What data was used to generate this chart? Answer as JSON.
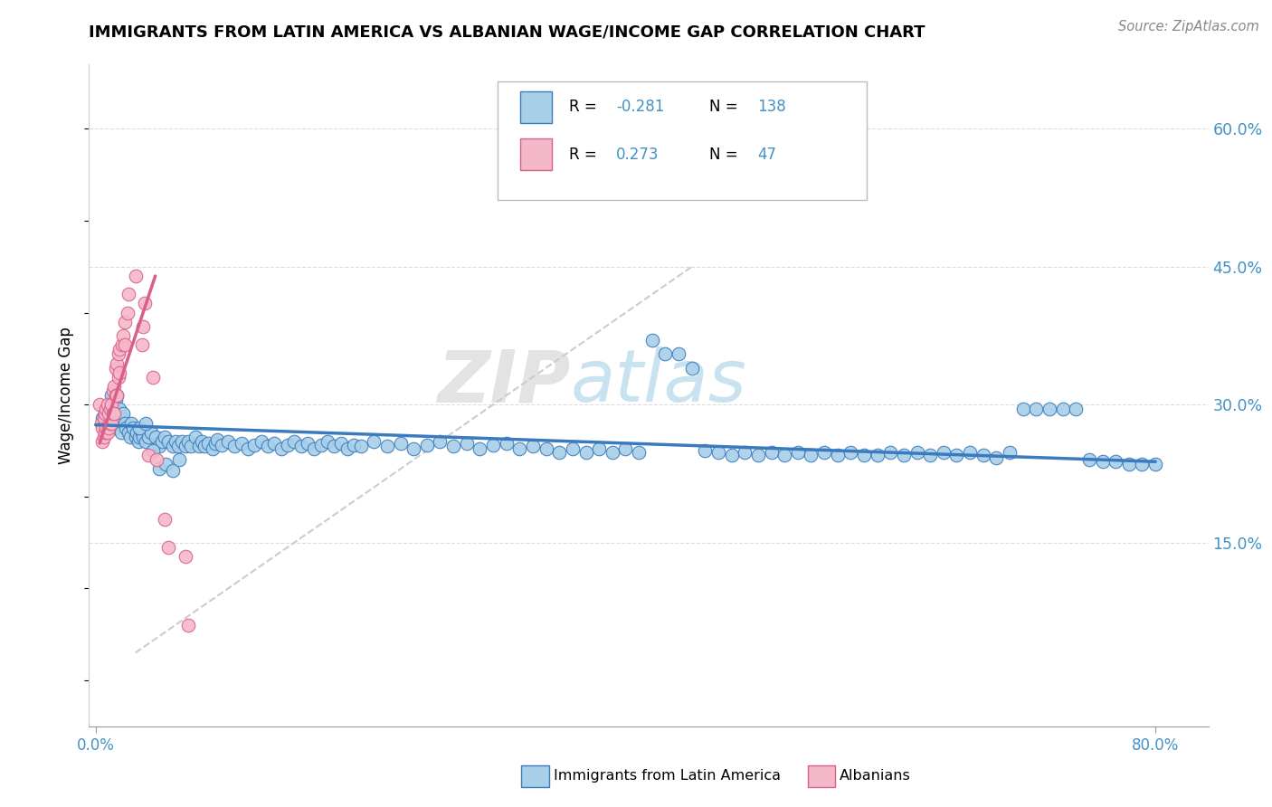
{
  "title": "IMMIGRANTS FROM LATIN AMERICA VS ALBANIAN WAGE/INCOME GAP CORRELATION CHART",
  "source": "Source: ZipAtlas.com",
  "ylabel": "Wage/Income Gap",
  "yticks": [
    0.0,
    0.15,
    0.3,
    0.45,
    0.6
  ],
  "ytick_labels": [
    "",
    "15.0%",
    "30.0%",
    "45.0%",
    "60.0%"
  ],
  "xlim": [
    -0.005,
    0.84
  ],
  "ylim": [
    -0.05,
    0.67
  ],
  "legend_r1_black": "R = ",
  "legend_r1_val": "-0.281",
  "legend_n1_label": "N = ",
  "legend_n1_val": "138",
  "legend_r2_black": "R =  ",
  "legend_r2_val": "0.273",
  "legend_n2_label": "N =  ",
  "legend_n2_val": "47",
  "color_blue": "#a8cfe8",
  "color_pink": "#f5b8c8",
  "color_blue_line": "#3a7bbf",
  "color_pink_line": "#d95f8a",
  "color_diag_line": "#cccccc",
  "color_blue_text": "#4292c6",
  "watermark_zip": "ZIP",
  "watermark_atlas": "atlas",
  "legend_label1": "Immigrants from Latin America",
  "legend_label2": "Albanians",
  "blue_scatter_x": [
    0.005,
    0.007,
    0.008,
    0.01,
    0.012,
    0.013,
    0.014,
    0.015,
    0.016,
    0.017,
    0.018,
    0.019,
    0.02,
    0.021,
    0.022,
    0.023,
    0.025,
    0.026,
    0.027,
    0.028,
    0.03,
    0.031,
    0.032,
    0.033,
    0.035,
    0.036,
    0.038,
    0.04,
    0.042,
    0.045,
    0.048,
    0.05,
    0.052,
    0.055,
    0.058,
    0.06,
    0.062,
    0.065,
    0.068,
    0.07,
    0.072,
    0.075,
    0.078,
    0.08,
    0.082,
    0.085,
    0.088,
    0.09,
    0.092,
    0.095,
    0.1,
    0.105,
    0.11,
    0.115,
    0.12,
    0.125,
    0.13,
    0.135,
    0.14,
    0.145,
    0.15,
    0.155,
    0.16,
    0.165,
    0.17,
    0.175,
    0.18,
    0.185,
    0.19,
    0.195,
    0.2,
    0.21,
    0.22,
    0.23,
    0.24,
    0.25,
    0.26,
    0.27,
    0.28,
    0.29,
    0.3,
    0.31,
    0.32,
    0.33,
    0.34,
    0.35,
    0.36,
    0.37,
    0.38,
    0.39,
    0.4,
    0.41,
    0.42,
    0.43,
    0.44,
    0.45,
    0.46,
    0.47,
    0.48,
    0.49,
    0.5,
    0.51,
    0.52,
    0.53,
    0.54,
    0.55,
    0.56,
    0.57,
    0.58,
    0.59,
    0.6,
    0.61,
    0.62,
    0.63,
    0.64,
    0.65,
    0.66,
    0.67,
    0.68,
    0.69,
    0.7,
    0.71,
    0.72,
    0.73,
    0.74,
    0.75,
    0.76,
    0.77,
    0.78,
    0.79,
    0.8,
    0.033,
    0.038,
    0.043,
    0.048,
    0.053,
    0.058,
    0.063
  ],
  "blue_scatter_y": [
    0.285,
    0.29,
    0.295,
    0.3,
    0.31,
    0.285,
    0.275,
    0.305,
    0.31,
    0.285,
    0.295,
    0.27,
    0.285,
    0.29,
    0.28,
    0.275,
    0.27,
    0.265,
    0.28,
    0.275,
    0.265,
    0.27,
    0.26,
    0.265,
    0.27,
    0.265,
    0.26,
    0.265,
    0.27,
    0.265,
    0.255,
    0.26,
    0.265,
    0.26,
    0.255,
    0.26,
    0.255,
    0.26,
    0.255,
    0.26,
    0.255,
    0.265,
    0.255,
    0.26,
    0.255,
    0.258,
    0.252,
    0.258,
    0.262,
    0.256,
    0.26,
    0.255,
    0.258,
    0.252,
    0.256,
    0.26,
    0.255,
    0.258,
    0.252,
    0.256,
    0.26,
    0.255,
    0.258,
    0.252,
    0.256,
    0.26,
    0.255,
    0.258,
    0.252,
    0.256,
    0.255,
    0.26,
    0.255,
    0.258,
    0.252,
    0.256,
    0.26,
    0.255,
    0.258,
    0.252,
    0.256,
    0.258,
    0.252,
    0.255,
    0.252,
    0.248,
    0.252,
    0.248,
    0.252,
    0.248,
    0.252,
    0.248,
    0.37,
    0.355,
    0.355,
    0.34,
    0.25,
    0.248,
    0.245,
    0.248,
    0.245,
    0.248,
    0.245,
    0.248,
    0.245,
    0.248,
    0.245,
    0.248,
    0.245,
    0.245,
    0.248,
    0.245,
    0.248,
    0.245,
    0.248,
    0.245,
    0.248,
    0.245,
    0.242,
    0.248,
    0.295,
    0.295,
    0.295,
    0.295,
    0.295,
    0.24,
    0.238,
    0.238,
    0.235,
    0.235,
    0.235,
    0.275,
    0.28,
    0.25,
    0.23,
    0.235,
    0.228,
    0.24
  ],
  "pink_scatter_x": [
    0.003,
    0.004,
    0.005,
    0.005,
    0.006,
    0.006,
    0.007,
    0.007,
    0.008,
    0.008,
    0.009,
    0.009,
    0.01,
    0.01,
    0.011,
    0.011,
    0.012,
    0.012,
    0.013,
    0.013,
    0.014,
    0.014,
    0.015,
    0.015,
    0.016,
    0.016,
    0.017,
    0.017,
    0.018,
    0.018,
    0.02,
    0.021,
    0.022,
    0.022,
    0.024,
    0.025,
    0.03,
    0.035,
    0.036,
    0.037,
    0.04,
    0.043,
    0.046,
    0.052,
    0.055,
    0.068,
    0.07
  ],
  "pink_scatter_y": [
    0.3,
    0.28,
    0.26,
    0.275,
    0.265,
    0.285,
    0.27,
    0.29,
    0.275,
    0.295,
    0.27,
    0.3,
    0.275,
    0.29,
    0.28,
    0.295,
    0.28,
    0.3,
    0.29,
    0.315,
    0.29,
    0.32,
    0.31,
    0.34,
    0.31,
    0.345,
    0.33,
    0.355,
    0.335,
    0.36,
    0.365,
    0.375,
    0.365,
    0.39,
    0.4,
    0.42,
    0.44,
    0.365,
    0.385,
    0.41,
    0.245,
    0.33,
    0.24,
    0.175,
    0.145,
    0.135,
    0.06
  ],
  "blue_line_x": [
    0.0,
    0.8
  ],
  "blue_line_y": [
    0.278,
    0.238
  ],
  "pink_line_x": [
    0.003,
    0.045
  ],
  "pink_line_y": [
    0.258,
    0.44
  ],
  "diag_line_x": [
    0.03,
    0.45
  ],
  "diag_line_y": [
    0.03,
    0.45
  ]
}
